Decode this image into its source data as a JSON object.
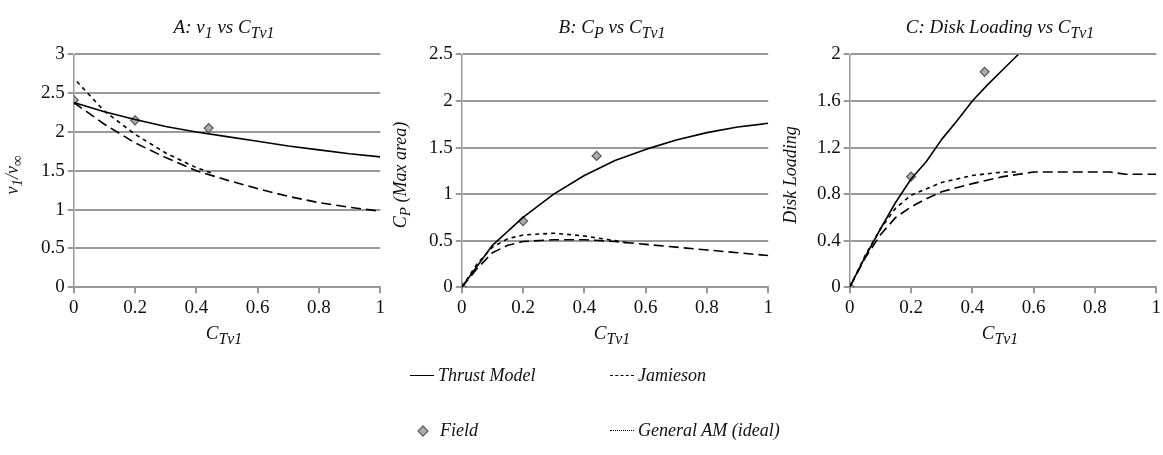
{
  "chart_data": [
    {
      "type": "line",
      "title": "A: v$_{1}$ vs C$_{Tv1}$",
      "xlabel": "C$_{Tv1}$",
      "ylabel": "v$_{1}$/v$_{∞}$",
      "xlim": [
        0,
        1
      ],
      "xticks": [
        0,
        0.2,
        0.4,
        0.6,
        0.8,
        1
      ],
      "ylim": [
        0,
        3
      ],
      "yticks": [
        0,
        0.5,
        1,
        1.5,
        2,
        2.5,
        3
      ],
      "grid": "y",
      "legend": false,
      "series": [
        {
          "type": "line",
          "color": "#000000",
          "line_style": "solid",
          "marker": "none",
          "x": [
            0,
            0.1,
            0.2,
            0.3,
            0.4,
            0.5,
            0.6,
            0.7,
            0.8,
            0.9,
            1
          ],
          "values": [
            2.38,
            2.26,
            2.16,
            2.07,
            2.0,
            1.94,
            1.88,
            1.82,
            1.77,
            1.72,
            1.68
          ]
        },
        {
          "type": "line",
          "color": "#000000",
          "line_style": "dashed",
          "marker": "none",
          "x": [
            0,
            0.1,
            0.2,
            0.3,
            0.4,
            0.5,
            0.6,
            0.7,
            0.8,
            0.9,
            1
          ],
          "values": [
            2.38,
            2.1,
            1.86,
            1.67,
            1.5,
            1.38,
            1.27,
            1.17,
            1.09,
            1.03,
            0.98
          ]
        },
        {
          "type": "scatter",
          "color": "#555555",
          "marker": "diamond",
          "x": [
            0,
            0.2,
            0.44
          ],
          "values": [
            2.41,
            2.15,
            2.05
          ]
        },
        {
          "type": "line",
          "color": "#000000",
          "line_style": "dotted",
          "marker": "none",
          "x": [
            0.01,
            0.1,
            0.2,
            0.3,
            0.4,
            0.45
          ],
          "values": [
            2.65,
            2.27,
            1.97,
            1.73,
            1.54,
            1.47
          ]
        }
      ]
    },
    {
      "type": "line",
      "title": "B: C$_{P}$ vs C$_{Tv1}$",
      "xlabel": "C$_{Tv1}$",
      "ylabel": "C$_{P}$ (Max area)",
      "xlim": [
        0,
        1
      ],
      "xticks": [
        0,
        0.2,
        0.4,
        0.6,
        0.8,
        1
      ],
      "ylim": [
        0,
        2.5
      ],
      "yticks": [
        0,
        0.5,
        1,
        1.5,
        2,
        2.5
      ],
      "grid": "y",
      "legend": "bottom",
      "series": [
        {
          "type": "line",
          "name": "Thrust Model",
          "color": "#000000",
          "line_style": "solid",
          "marker": "none",
          "x": [
            0,
            0.1,
            0.2,
            0.3,
            0.4,
            0.5,
            0.6,
            0.7,
            0.8,
            0.9,
            1
          ],
          "values": [
            0,
            0.45,
            0.75,
            1.0,
            1.2,
            1.36,
            1.48,
            1.58,
            1.66,
            1.72,
            1.76
          ]
        },
        {
          "type": "line",
          "name": "Jamieson",
          "color": "#000000",
          "line_style": "dashed",
          "marker": "none",
          "x": [
            0,
            0.05,
            0.1,
            0.15,
            0.2,
            0.3,
            0.4,
            0.5,
            0.6,
            0.7,
            0.8,
            0.9,
            1
          ],
          "values": [
            0,
            0.2,
            0.37,
            0.45,
            0.49,
            0.51,
            0.51,
            0.49,
            0.46,
            0.43,
            0.4,
            0.37,
            0.34
          ]
        },
        {
          "type": "scatter",
          "name": "Field",
          "color": "#555555",
          "marker": "diamond",
          "x": [
            0,
            0.2,
            0.44
          ],
          "values": [
            0,
            0.71,
            1.41
          ]
        },
        {
          "type": "line",
          "name": "General AM (ideal)",
          "color": "#000000",
          "line_style": "dotted",
          "marker": "none",
          "x": [
            0,
            0.05,
            0.1,
            0.15,
            0.2,
            0.3,
            0.4,
            0.5,
            0.55
          ],
          "values": [
            0,
            0.25,
            0.43,
            0.52,
            0.56,
            0.58,
            0.55,
            0.5,
            0.47
          ]
        }
      ]
    },
    {
      "type": "line",
      "title": "C: Disk Loading vs C$_{Tv1}$",
      "xlabel": "C$_{Tv1}$",
      "ylabel": "Disk Loading",
      "xlim": [
        0,
        1
      ],
      "xticks": [
        0,
        0.2,
        0.4,
        0.6,
        0.8,
        1
      ],
      "ylim": [
        0,
        2
      ],
      "yticks": [
        0,
        0.4,
        0.8,
        1.2,
        1.6,
        2
      ],
      "grid": "y",
      "legend": false,
      "series": [
        {
          "type": "line",
          "color": "#000000",
          "line_style": "solid",
          "marker": "none",
          "x": [
            0,
            0.05,
            0.1,
            0.15,
            0.2,
            0.25,
            0.3,
            0.35,
            0.4,
            0.45,
            0.5,
            0.55
          ],
          "values": [
            0,
            0.26,
            0.5,
            0.73,
            0.93,
            1.08,
            1.27,
            1.43,
            1.6,
            1.74,
            1.87,
            2.0
          ]
        },
        {
          "type": "line",
          "color": "#000000",
          "line_style": "dashed",
          "marker": "none",
          "x": [
            0,
            0.05,
            0.1,
            0.15,
            0.2,
            0.25,
            0.3,
            0.4,
            0.5,
            0.6,
            0.7,
            0.85,
            0.9,
            1
          ],
          "values": [
            0,
            0.25,
            0.45,
            0.6,
            0.69,
            0.76,
            0.82,
            0.89,
            0.95,
            0.99,
            0.99,
            0.99,
            0.97,
            0.97
          ]
        },
        {
          "type": "scatter",
          "color": "#555555",
          "marker": "diamond",
          "x": [
            0,
            0.2,
            0.44
          ],
          "values": [
            0,
            0.95,
            1.85
          ]
        },
        {
          "type": "line",
          "color": "#000000",
          "line_style": "dotted",
          "marker": "none",
          "x": [
            0,
            0.05,
            0.1,
            0.15,
            0.2,
            0.3,
            0.4,
            0.5,
            0.55
          ],
          "values": [
            0,
            0.27,
            0.5,
            0.68,
            0.79,
            0.9,
            0.96,
            0.99,
            0.99
          ]
        }
      ]
    }
  ]
}
